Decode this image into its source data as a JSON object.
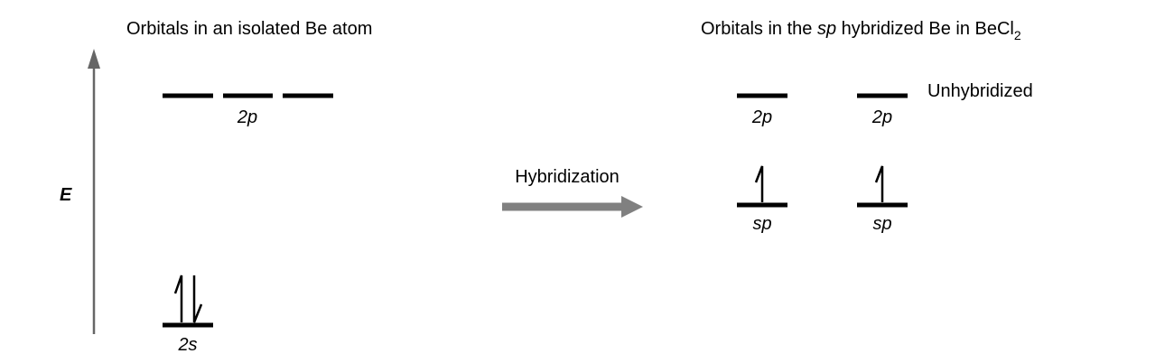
{
  "left": {
    "title": "Orbitals in an isolated Be atom",
    "label_2p": "2p",
    "label_2s": "2s",
    "axis_label": "E"
  },
  "middle": {
    "process_label": "Hybridization",
    "arrow_color": "#808080"
  },
  "right": {
    "title_prefix": "Orbitals in the ",
    "title_italic": "sp",
    "title_mid": " hybridized Be in BeCl",
    "title_sub": "2",
    "label_2p": "2p",
    "label_sp": "sp",
    "unhybridized": "Unhybridized"
  },
  "colors": {
    "axis": "#666666",
    "levels": "#000000"
  }
}
